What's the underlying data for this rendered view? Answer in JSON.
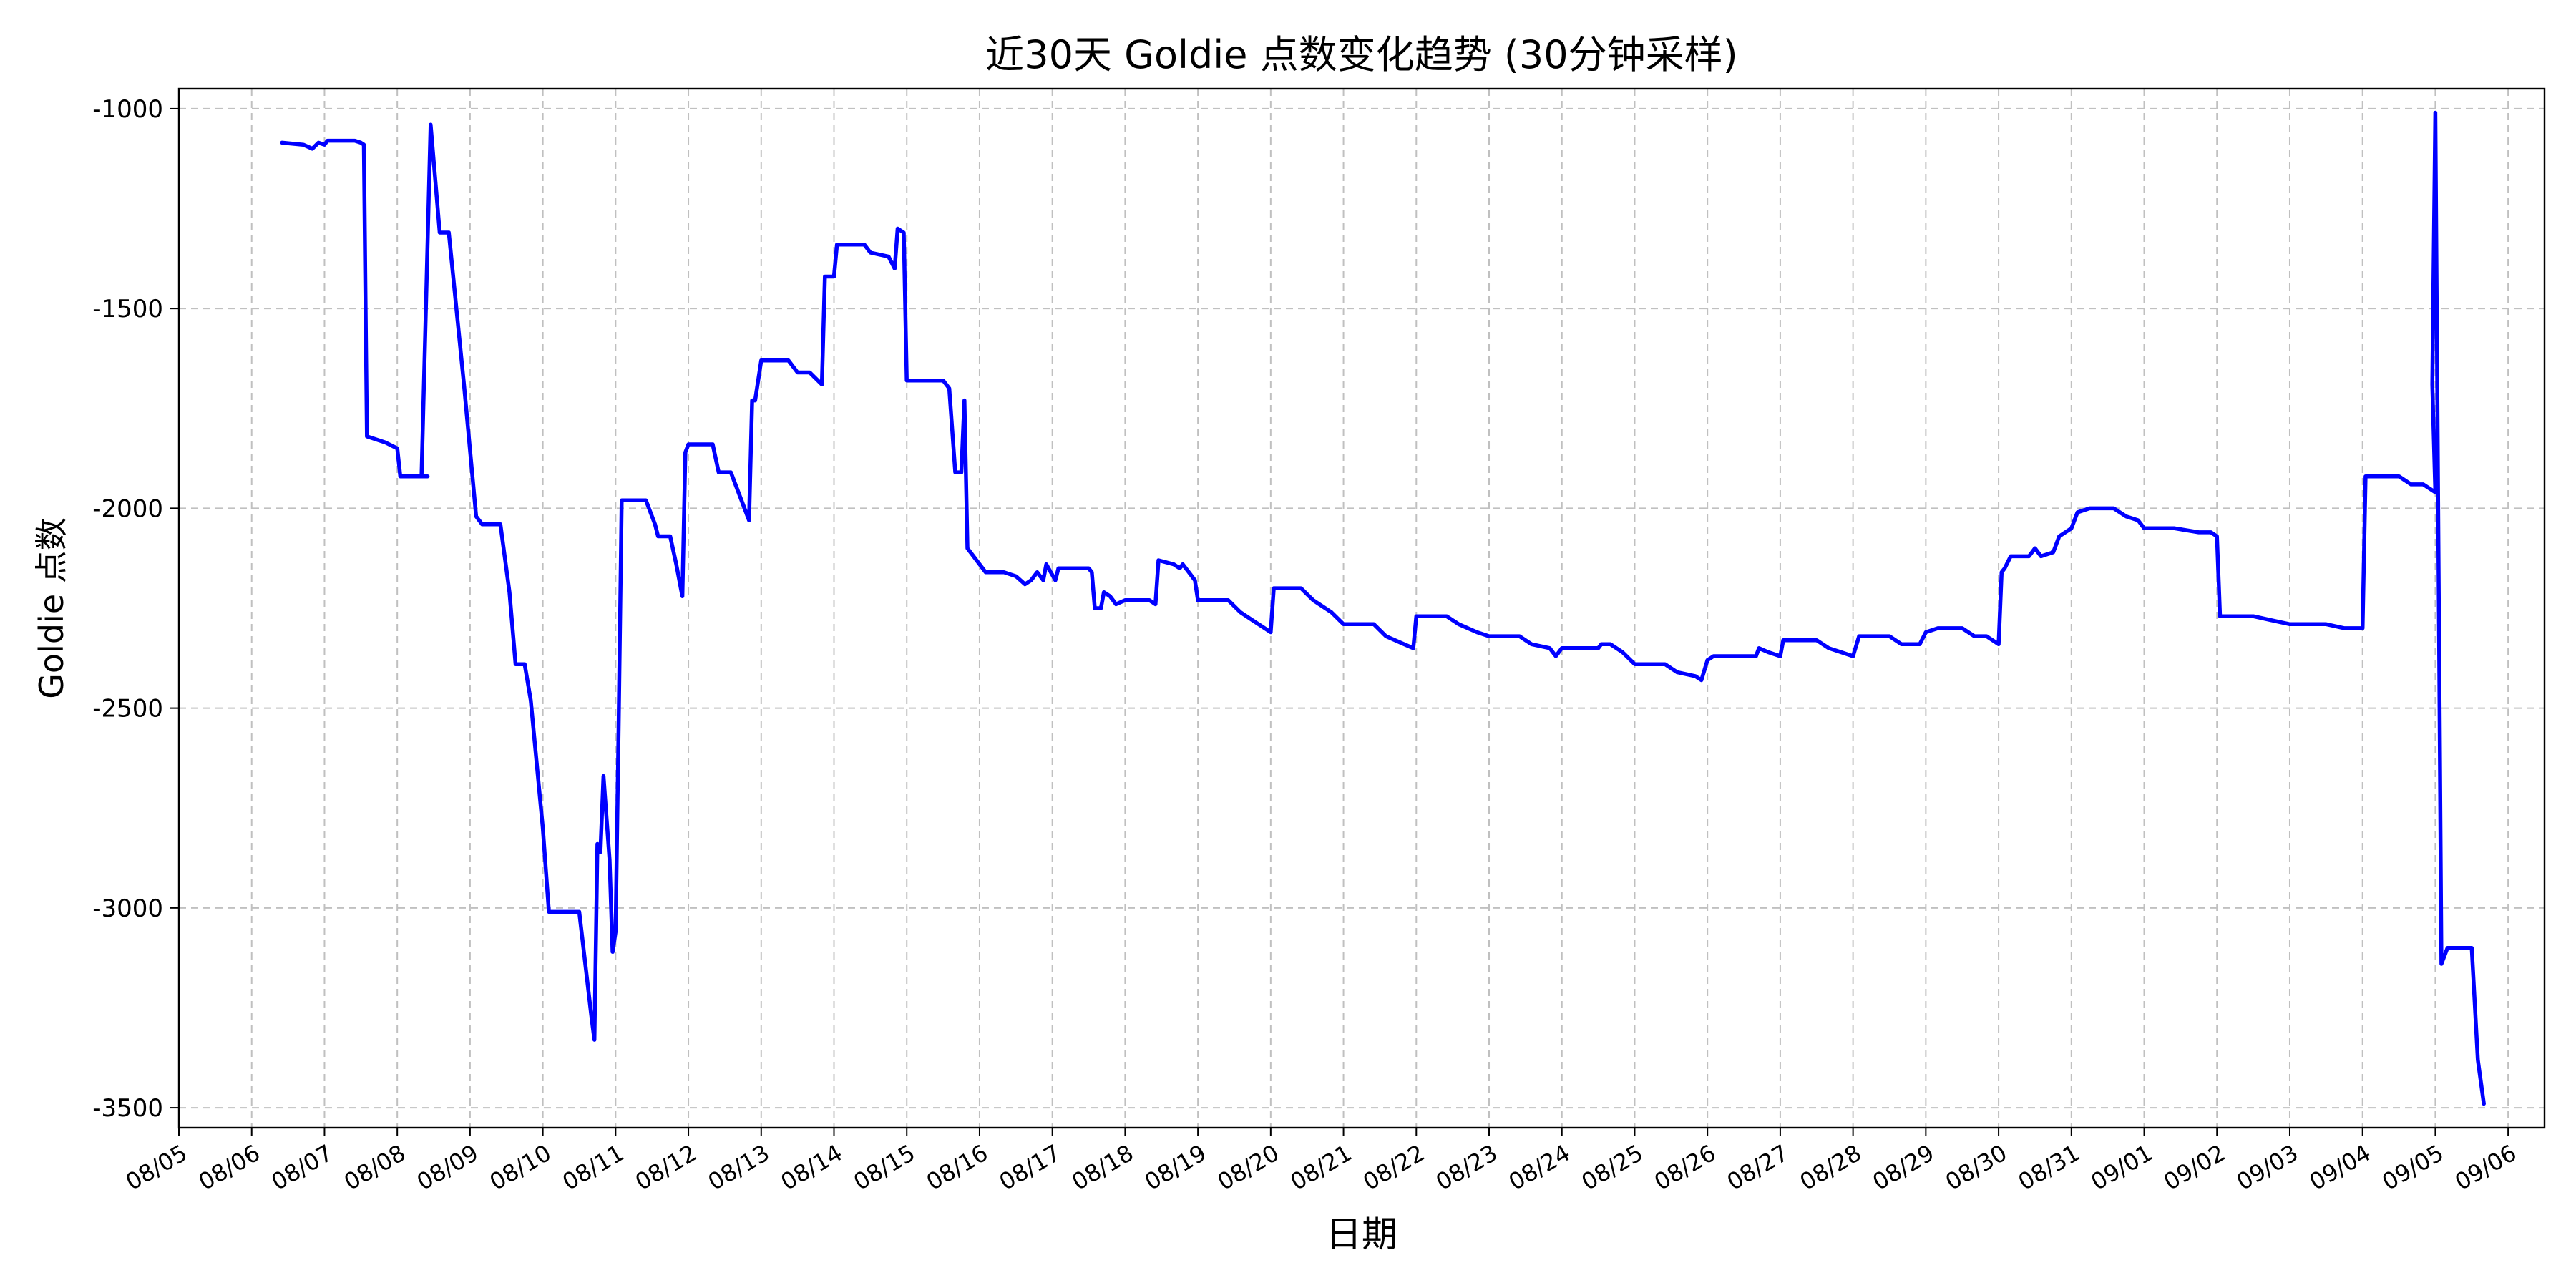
{
  "chart_data": {
    "type": "line",
    "title": "近30天 Goldie 点数变化趋势 (30分钟采样)",
    "xlabel": "日期",
    "ylabel": "Goldie 点数",
    "xlim": [
      "2024-08-05",
      "2024-09-06T12:00"
    ],
    "ylim": [
      -3550,
      -950
    ],
    "grid": true,
    "line_color": "#0000ff",
    "x_tick_labels": [
      "08/05",
      "08/06",
      "08/07",
      "08/08",
      "08/09",
      "08/10",
      "08/11",
      "08/12",
      "08/13",
      "08/14",
      "08/15",
      "08/16",
      "08/17",
      "08/18",
      "08/19",
      "08/20",
      "08/21",
      "08/22",
      "08/23",
      "08/24",
      "08/25",
      "08/26",
      "08/27",
      "08/28",
      "08/29",
      "08/30",
      "08/31",
      "09/01",
      "09/02",
      "09/03",
      "09/04",
      "09/05",
      "09/06"
    ],
    "y_ticks": [
      -1000,
      -1500,
      -2000,
      -2500,
      -3000,
      -3500
    ],
    "series": [
      {
        "points": [
          [
            "2024-08-06T10:00",
            -1085
          ],
          [
            "2024-08-06T17:00",
            -1090
          ],
          [
            "2024-08-06T20:00",
            -1100
          ],
          [
            "2024-08-06T22:00",
            -1085
          ],
          [
            "2024-08-07T00:00",
            -1090
          ],
          [
            "2024-08-07T01:00",
            -1080
          ],
          [
            "2024-08-07T10:00",
            -1080
          ],
          [
            "2024-08-07T12:00",
            -1085
          ],
          [
            "2024-08-07T13:00",
            -1090
          ],
          [
            "2024-08-07T14:00",
            -1820
          ],
          [
            "2024-08-07T20:00",
            -1835
          ],
          [
            "2024-08-08T00:00",
            -1850
          ],
          [
            "2024-08-08T01:00",
            -1920
          ],
          [
            "2024-08-08T10:00",
            -1920
          ],
          [
            "2024-08-08T08:00",
            -1920
          ],
          [
            "2024-08-08T11:00",
            -1040
          ],
          [
            "2024-08-08T14:00",
            -1310
          ],
          [
            "2024-08-08T17:00",
            -1310
          ],
          [
            "2024-08-08T22:00",
            -1690
          ],
          [
            "2024-08-09T02:00",
            -2020
          ],
          [
            "2024-08-09T04:00",
            -2040
          ],
          [
            "2024-08-09T10:00",
            -2040
          ],
          [
            "2024-08-09T13:00",
            -2210
          ],
          [
            "2024-08-09T15:00",
            -2390
          ],
          [
            "2024-08-09T18:00",
            -2390
          ],
          [
            "2024-08-09T20:00",
            -2480
          ],
          [
            "2024-08-10T00:00",
            -2800
          ],
          [
            "2024-08-10T02:00",
            -3010
          ],
          [
            "2024-08-10T12:00",
            -3010
          ],
          [
            "2024-08-10T16:00",
            -3270
          ],
          [
            "2024-08-10T17:00",
            -3330
          ],
          [
            "2024-08-10T18:00",
            -2840
          ],
          [
            "2024-08-10T19:00",
            -2860
          ],
          [
            "2024-08-10T20:00",
            -2670
          ],
          [
            "2024-08-10T22:00",
            -2880
          ],
          [
            "2024-08-10T23:00",
            -3110
          ],
          [
            "2024-08-11T00:00",
            -3060
          ],
          [
            "2024-08-11T01:00",
            -2540
          ],
          [
            "2024-08-11T02:00",
            -1980
          ],
          [
            "2024-08-11T10:00",
            -1980
          ],
          [
            "2024-08-11T13:00",
            -2040
          ],
          [
            "2024-08-11T14:00",
            -2070
          ],
          [
            "2024-08-11T18:00",
            -2070
          ],
          [
            "2024-08-11T20:00",
            -2140
          ],
          [
            "2024-08-11T22:00",
            -2220
          ],
          [
            "2024-08-11T23:00",
            -1860
          ],
          [
            "2024-08-12T00:00",
            -1840
          ],
          [
            "2024-08-12T08:00",
            -1840
          ],
          [
            "2024-08-12T10:00",
            -1910
          ],
          [
            "2024-08-12T14:00",
            -1910
          ],
          [
            "2024-08-12T20:00",
            -2030
          ],
          [
            "2024-08-12T21:00",
            -1730
          ],
          [
            "2024-08-12T22:00",
            -1730
          ],
          [
            "2024-08-13T00:00",
            -1630
          ],
          [
            "2024-08-13T09:00",
            -1630
          ],
          [
            "2024-08-13T12:00",
            -1660
          ],
          [
            "2024-08-13T16:00",
            -1660
          ],
          [
            "2024-08-13T20:00",
            -1690
          ],
          [
            "2024-08-13T21:00",
            -1420
          ],
          [
            "2024-08-14T00:00",
            -1420
          ],
          [
            "2024-08-14T01:00",
            -1340
          ],
          [
            "2024-08-14T10:00",
            -1340
          ],
          [
            "2024-08-14T12:00",
            -1360
          ],
          [
            "2024-08-14T18:00",
            -1370
          ],
          [
            "2024-08-14T20:00",
            -1400
          ],
          [
            "2024-08-14T21:00",
            -1300
          ],
          [
            "2024-08-14T23:00",
            -1310
          ],
          [
            "2024-08-15T00:00",
            -1680
          ],
          [
            "2024-08-15T12:00",
            -1680
          ],
          [
            "2024-08-15T14:00",
            -1700
          ],
          [
            "2024-08-15T16:00",
            -1910
          ],
          [
            "2024-08-15T18:00",
            -1910
          ],
          [
            "2024-08-15T19:00",
            -1730
          ],
          [
            "2024-08-15T20:00",
            -2100
          ],
          [
            "2024-08-16T02:00",
            -2160
          ],
          [
            "2024-08-16T08:00",
            -2160
          ],
          [
            "2024-08-16T12:00",
            -2170
          ],
          [
            "2024-08-16T15:00",
            -2190
          ],
          [
            "2024-08-16T17:00",
            -2180
          ],
          [
            "2024-08-16T19:00",
            -2160
          ],
          [
            "2024-08-16T21:00",
            -2180
          ],
          [
            "2024-08-16T22:00",
            -2140
          ],
          [
            "2024-08-17T01:00",
            -2180
          ],
          [
            "2024-08-17T02:00",
            -2150
          ],
          [
            "2024-08-17T08:00",
            -2150
          ],
          [
            "2024-08-17T12:00",
            -2150
          ],
          [
            "2024-08-17T13:00",
            -2160
          ],
          [
            "2024-08-17T14:00",
            -2250
          ],
          [
            "2024-08-17T16:00",
            -2250
          ],
          [
            "2024-08-17T17:00",
            -2210
          ],
          [
            "2024-08-17T19:00",
            -2220
          ],
          [
            "2024-08-17T21:00",
            -2240
          ],
          [
            "2024-08-18T00:00",
            -2230
          ],
          [
            "2024-08-18T08:00",
            -2230
          ],
          [
            "2024-08-18T10:00",
            -2240
          ],
          [
            "2024-08-18T11:00",
            -2130
          ],
          [
            "2024-08-18T16:00",
            -2140
          ],
          [
            "2024-08-18T18:00",
            -2150
          ],
          [
            "2024-08-18T19:00",
            -2140
          ],
          [
            "2024-08-18T21:00",
            -2160
          ],
          [
            "2024-08-18T23:00",
            -2180
          ],
          [
            "2024-08-19T00:00",
            -2230
          ],
          [
            "2024-08-19T10:00",
            -2230
          ],
          [
            "2024-08-19T14:00",
            -2260
          ],
          [
            "2024-08-19T18:00",
            -2280
          ],
          [
            "2024-08-19T22:00",
            -2300
          ],
          [
            "2024-08-20T00:00",
            -2310
          ],
          [
            "2024-08-20T01:00",
            -2200
          ],
          [
            "2024-08-20T10:00",
            -2200
          ],
          [
            "2024-08-20T14:00",
            -2230
          ],
          [
            "2024-08-20T20:00",
            -2260
          ],
          [
            "2024-08-21T00:00",
            -2290
          ],
          [
            "2024-08-21T10:00",
            -2290
          ],
          [
            "2024-08-21T14:00",
            -2320
          ],
          [
            "2024-08-21T20:00",
            -2340
          ],
          [
            "2024-08-21T23:00",
            -2350
          ],
          [
            "2024-08-22T00:00",
            -2270
          ],
          [
            "2024-08-22T10:00",
            -2270
          ],
          [
            "2024-08-22T14:00",
            -2290
          ],
          [
            "2024-08-22T20:00",
            -2310
          ],
          [
            "2024-08-23T00:00",
            -2320
          ],
          [
            "2024-08-23T10:00",
            -2320
          ],
          [
            "2024-08-23T14:00",
            -2340
          ],
          [
            "2024-08-23T20:00",
            -2350
          ],
          [
            "2024-08-23T22:00",
            -2370
          ],
          [
            "2024-08-24T00:00",
            -2350
          ],
          [
            "2024-08-24T12:00",
            -2350
          ],
          [
            "2024-08-24T13:00",
            -2340
          ],
          [
            "2024-08-24T16:00",
            -2340
          ],
          [
            "2024-08-24T20:00",
            -2360
          ],
          [
            "2024-08-25T00:00",
            -2390
          ],
          [
            "2024-08-25T10:00",
            -2390
          ],
          [
            "2024-08-25T14:00",
            -2410
          ],
          [
            "2024-08-25T20:00",
            -2420
          ],
          [
            "2024-08-25T22:00",
            -2430
          ],
          [
            "2024-08-26T00:00",
            -2380
          ],
          [
            "2024-08-26T02:00",
            -2370
          ],
          [
            "2024-08-26T16:00",
            -2370
          ],
          [
            "2024-08-26T17:00",
            -2350
          ],
          [
            "2024-08-26T20:00",
            -2360
          ],
          [
            "2024-08-27T00:00",
            -2370
          ],
          [
            "2024-08-27T01:00",
            -2330
          ],
          [
            "2024-08-27T12:00",
            -2330
          ],
          [
            "2024-08-27T16:00",
            -2350
          ],
          [
            "2024-08-27T20:00",
            -2360
          ],
          [
            "2024-08-28T00:00",
            -2370
          ],
          [
            "2024-08-28T02:00",
            -2320
          ],
          [
            "2024-08-28T12:00",
            -2320
          ],
          [
            "2024-08-28T16:00",
            -2340
          ],
          [
            "2024-08-28T22:00",
            -2340
          ],
          [
            "2024-08-29T00:00",
            -2310
          ],
          [
            "2024-08-29T04:00",
            -2300
          ],
          [
            "2024-08-29T12:00",
            -2300
          ],
          [
            "2024-08-29T16:00",
            -2320
          ],
          [
            "2024-08-29T20:00",
            -2320
          ],
          [
            "2024-08-30T00:00",
            -2340
          ],
          [
            "2024-08-30T01:00",
            -2160
          ],
          [
            "2024-08-30T02:00",
            -2150
          ],
          [
            "2024-08-30T04:00",
            -2120
          ],
          [
            "2024-08-30T10:00",
            -2120
          ],
          [
            "2024-08-30T12:00",
            -2100
          ],
          [
            "2024-08-30T14:00",
            -2120
          ],
          [
            "2024-08-30T18:00",
            -2110
          ],
          [
            "2024-08-30T20:00",
            -2070
          ],
          [
            "2024-08-31T00:00",
            -2050
          ],
          [
            "2024-08-31T02:00",
            -2010
          ],
          [
            "2024-08-31T06:00",
            -2000
          ],
          [
            "2024-08-31T14:00",
            -2000
          ],
          [
            "2024-08-31T18:00",
            -2020
          ],
          [
            "2024-08-31T22:00",
            -2030
          ],
          [
            "2024-09-01T00:00",
            -2050
          ],
          [
            "2024-09-01T10:00",
            -2050
          ],
          [
            "2024-09-01T18:00",
            -2060
          ],
          [
            "2024-09-01T22:00",
            -2060
          ],
          [
            "2024-09-02T00:00",
            -2070
          ],
          [
            "2024-09-02T01:00",
            -2270
          ],
          [
            "2024-09-02T12:00",
            -2270
          ],
          [
            "2024-09-02T18:00",
            -2280
          ],
          [
            "2024-09-03T00:00",
            -2290
          ],
          [
            "2024-09-03T12:00",
            -2290
          ],
          [
            "2024-09-03T18:00",
            -2300
          ],
          [
            "2024-09-04T00:00",
            -2300
          ],
          [
            "2024-09-04T01:00",
            -1920
          ],
          [
            "2024-09-04T12:00",
            -1920
          ],
          [
            "2024-09-04T16:00",
            -1940
          ],
          [
            "2024-09-04T20:00",
            -1940
          ],
          [
            "2024-09-05T00:00",
            -1960
          ],
          [
            "2024-09-04T23:00",
            -1690
          ],
          [
            "2024-09-05T00:00",
            -1010
          ],
          [
            "2024-09-05T02:00",
            -3140
          ],
          [
            "2024-09-05T04:00",
            -3100
          ],
          [
            "2024-09-05T12:00",
            -3100
          ],
          [
            "2024-09-05T14:00",
            -3380
          ],
          [
            "2024-09-05T16:00",
            -3490
          ]
        ]
      }
    ]
  }
}
